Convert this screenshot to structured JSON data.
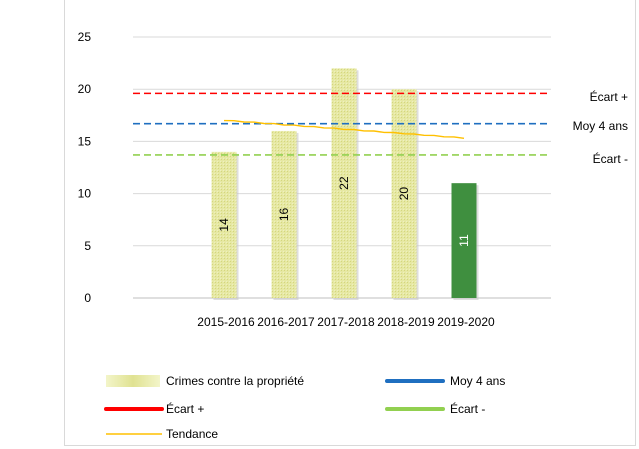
{
  "chart_data": {
    "type": "bar",
    "categories": [
      "2015-2016",
      "2016-2017",
      "2017-2018",
      "2018-2019",
      "2019-2020"
    ],
    "ylim": [
      0,
      25
    ],
    "yticks": [
      0,
      5,
      10,
      15,
      20,
      25
    ],
    "grid": true,
    "legend_position": "bottom",
    "series": [
      {
        "name": "Crimes contre la propriété",
        "values": [
          14,
          16,
          22,
          20,
          11
        ],
        "color": "#e3e59a",
        "highlight_last": {
          "color": "#3f8f3f"
        }
      }
    ],
    "reference_lines": [
      {
        "name": "Écart +",
        "value": 19.6,
        "color": "#ff0000",
        "style": "dashed",
        "end_label": "Écart +"
      },
      {
        "name": "Moy 4 ans",
        "value": 16.7,
        "color": "#1f6fc0",
        "style": "dashed",
        "end_label": "Moy 4 ans"
      },
      {
        "name": "Écart -",
        "value": 13.7,
        "color": "#92d050",
        "style": "dashed",
        "end_label": "Écart -"
      }
    ],
    "trend": {
      "name": "Tendance",
      "color": "#ffc000",
      "x_range": [
        "2015-2016",
        "2019-2020"
      ],
      "values": [
        17.0,
        15.3
      ]
    },
    "legend": [
      {
        "label": "Crimes contre la propriété",
        "kind": "bar",
        "color": "#e3e59a"
      },
      {
        "label": "Moy 4 ans",
        "kind": "line",
        "color": "#1f6fc0"
      },
      {
        "label": "Écart +",
        "kind": "line",
        "color": "#ff0000"
      },
      {
        "label": "Écart -",
        "kind": "line",
        "color": "#92d050"
      },
      {
        "label": "Tendance",
        "kind": "thin-line",
        "color": "#ffc000"
      }
    ]
  }
}
